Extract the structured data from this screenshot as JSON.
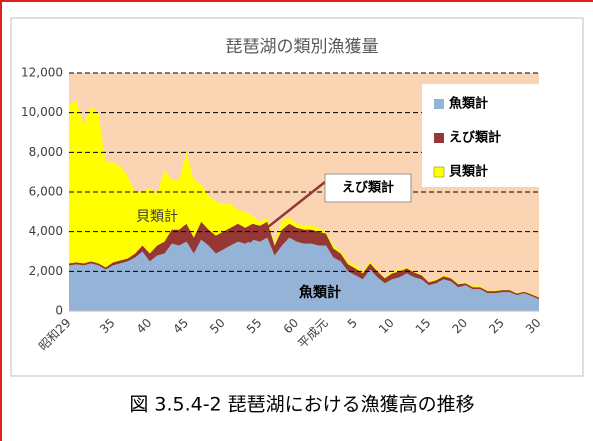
{
  "chart_data": {
    "type": "area",
    "title": "琵琶湖の類別漁獲量",
    "categories": [
      "昭和29",
      null,
      null,
      null,
      null,
      null,
      "35",
      null,
      null,
      null,
      null,
      "40",
      null,
      null,
      null,
      null,
      "45",
      null,
      null,
      null,
      null,
      "50",
      null,
      null,
      null,
      null,
      "55",
      null,
      null,
      null,
      null,
      "60",
      null,
      null,
      null,
      "平成元",
      null,
      null,
      null,
      "5",
      null,
      null,
      null,
      null,
      "10",
      null,
      null,
      null,
      null,
      "15",
      null,
      null,
      null,
      null,
      "20",
      null,
      null,
      null,
      null,
      "25",
      null,
      null,
      null,
      null,
      "30"
    ],
    "series": [
      {
        "name": "魚類計",
        "color": "#95b3d7",
        "values": [
          2300,
          2350,
          2300,
          2400,
          2300,
          2100,
          2300,
          2400,
          2500,
          2700,
          3000,
          2500,
          2800,
          2900,
          3400,
          3300,
          3500,
          2900,
          3600,
          3300,
          2900,
          3100,
          3300,
          3500,
          3400,
          3600,
          3500,
          3700,
          2800,
          3300,
          3700,
          3500,
          3400,
          3400,
          3300,
          3300,
          2700,
          2500,
          2000,
          1800,
          1600,
          2100,
          1700,
          1400,
          1600,
          1700,
          1900,
          1700,
          1600,
          1300,
          1400,
          1600,
          1500,
          1200,
          1300,
          1100,
          1100,
          900,
          900,
          950,
          950,
          800,
          900,
          750,
          600
        ]
      },
      {
        "name": "えび類計",
        "color": "#953735",
        "values": [
          100,
          100,
          100,
          100,
          100,
          100,
          150,
          150,
          150,
          200,
          300,
          400,
          500,
          600,
          700,
          800,
          900,
          800,
          900,
          800,
          900,
          900,
          900,
          900,
          800,
          800,
          800,
          800,
          500,
          800,
          700,
          700,
          700,
          700,
          700,
          600,
          450,
          400,
          350,
          350,
          300,
          300,
          300,
          250,
          300,
          300,
          250,
          250,
          200,
          150,
          150,
          150,
          150,
          150,
          100,
          100,
          100,
          100,
          100,
          100,
          100,
          80,
          80,
          80,
          80
        ]
      },
      {
        "name": "貝類計",
        "color": "#ffff00",
        "values": [
          8000,
          8150,
          7000,
          7800,
          7600,
          5300,
          5050,
          4750,
          4150,
          3100,
          2700,
          3300,
          2600,
          3600,
          2500,
          2500,
          3600,
          2900,
          1900,
          1700,
          1700,
          1400,
          1200,
          700,
          800,
          400,
          200,
          200,
          100,
          500,
          300,
          200,
          200,
          200,
          200,
          100,
          150,
          100,
          150,
          150,
          100,
          100,
          100,
          50,
          100,
          100,
          50,
          50,
          50,
          50,
          50,
          50,
          50,
          50,
          50,
          50,
          50,
          30,
          30,
          30,
          30,
          30,
          30,
          30,
          30
        ]
      }
    ],
    "ylim": [
      0,
      12000
    ],
    "yticks": [
      0,
      {
        "value": 2000,
        "label": "2,000"
      },
      {
        "value": 4000,
        "label": "4,000"
      },
      {
        "value": 6000,
        "label": "6,000"
      },
      {
        "value": 8000,
        "label": "8,000"
      },
      {
        "value": 10000,
        "label": "10,000"
      },
      {
        "value": 12000,
        "label": "12,000"
      }
    ],
    "grid": true,
    "legend": "upper right",
    "background": "#fbd4b4",
    "annotations": [
      {
        "text": "えび類計"
      },
      {
        "text": "貝類計"
      },
      {
        "text": "魚類計"
      }
    ]
  },
  "caption": "図 3.5.4-2 琵琶湖における漁獲高の推移"
}
